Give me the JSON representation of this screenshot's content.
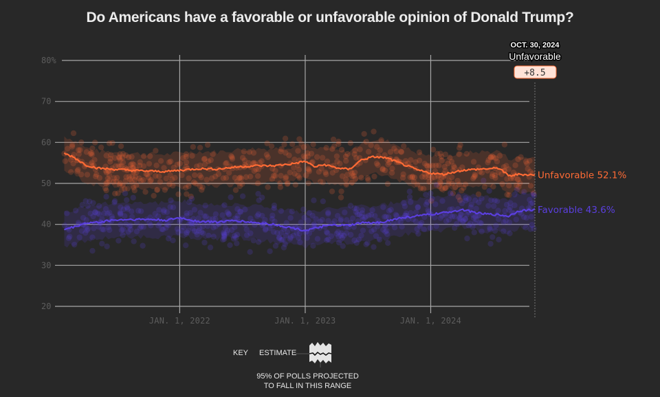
{
  "header": {
    "title": "Do Americans have a favorable or unfavorable opinion of Donald Trump?"
  },
  "annotation": {
    "date": "OCT. 30, 2024",
    "label": "Unfavorable",
    "margin": "+8.5"
  },
  "key": {
    "label": "KEY",
    "estimate": "ESTIMATE",
    "note_line1": "95% OF POLLS PROJECTED",
    "note_line2": "TO FALL IN THIS RANGE"
  },
  "colors": {
    "unfavorable": "#ff6b35",
    "favorable": "#5b3fe0",
    "grid": "#a8a8a8",
    "badge_bg": "#ffe3d8",
    "badge_border": "#ff6b35"
  },
  "chart_data": {
    "type": "line",
    "title": "Do Americans have a favorable or unfavorable opinion of Donald Trump?",
    "xlabel": "",
    "ylabel": "",
    "ylim": [
      20,
      80
    ],
    "yticks": [
      "20",
      "30",
      "40",
      "50",
      "60",
      "70",
      "80%"
    ],
    "ytick_values": [
      20,
      30,
      40,
      50,
      60,
      70,
      80
    ],
    "xticks": [
      "JAN. 1, 2022",
      "JAN. 1, 2023",
      "JAN. 1, 2024"
    ],
    "xtick_values": [
      2022.0,
      2023.0,
      2024.0
    ],
    "xlim": [
      2021.05,
      2024.83
    ],
    "grid": true,
    "legend": "direct labels at right end",
    "series": [
      {
        "name": "Unfavorable",
        "end_label": "Unfavorable 52.1%",
        "band": 4.2,
        "x": [
          2021.08,
          2021.15,
          2021.25,
          2021.35,
          2021.45,
          2021.6,
          2021.75,
          2021.9,
          2022.0,
          2022.15,
          2022.3,
          2022.45,
          2022.6,
          2022.75,
          2022.9,
          2023.0,
          2023.08,
          2023.15,
          2023.25,
          2023.35,
          2023.45,
          2023.55,
          2023.65,
          2023.75,
          2023.9,
          2024.0,
          2024.1,
          2024.25,
          2024.4,
          2024.55,
          2024.62,
          2024.7,
          2024.83
        ],
        "values": [
          57.3,
          56.5,
          54.5,
          53.7,
          53.5,
          53.2,
          53.0,
          52.9,
          53.2,
          53.6,
          53.5,
          54.0,
          54.3,
          54.3,
          54.8,
          55.4,
          54.0,
          54.6,
          53.8,
          53.4,
          55.8,
          56.5,
          56.2,
          55.0,
          53.2,
          52.5,
          52.2,
          53.2,
          53.5,
          53.7,
          51.8,
          52.2,
          52.1
        ]
      },
      {
        "name": "Favorable",
        "end_label": "Favorable 43.6%",
        "band": 4.2,
        "x": [
          2021.08,
          2021.15,
          2021.25,
          2021.35,
          2021.45,
          2021.6,
          2021.75,
          2021.9,
          2022.0,
          2022.15,
          2022.3,
          2022.45,
          2022.6,
          2022.75,
          2022.9,
          2023.0,
          2023.08,
          2023.15,
          2023.25,
          2023.35,
          2023.45,
          2023.55,
          2023.65,
          2023.75,
          2023.9,
          2024.0,
          2024.1,
          2024.25,
          2024.4,
          2024.55,
          2024.62,
          2024.7,
          2024.83
        ],
        "values": [
          38.8,
          39.3,
          40.3,
          40.5,
          41.0,
          41.2,
          41.2,
          41.0,
          41.6,
          40.7,
          40.6,
          40.9,
          40.4,
          40.0,
          39.1,
          38.5,
          39.0,
          39.6,
          39.8,
          39.7,
          40.4,
          40.3,
          40.8,
          41.5,
          42.1,
          42.4,
          42.8,
          43.6,
          42.6,
          42.3,
          42.0,
          43.3,
          43.6
        ]
      }
    ]
  }
}
